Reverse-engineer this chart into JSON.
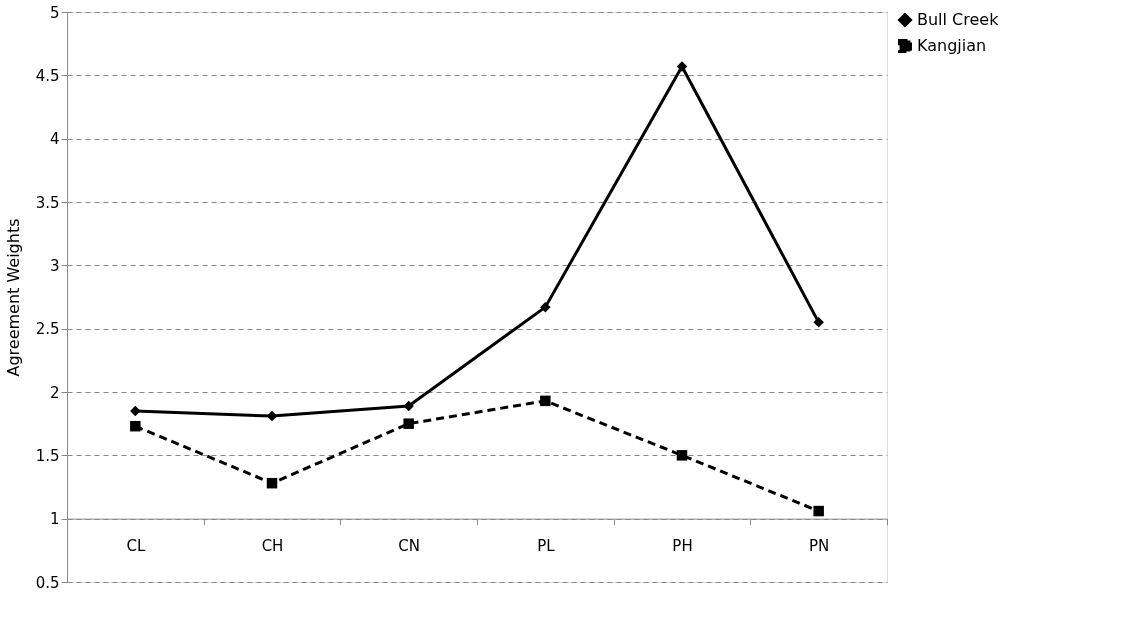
{
  "chart_data": {
    "type": "line",
    "ylabel": "Agreement Weights",
    "categories": [
      "CL",
      "CH",
      "CN",
      "PL",
      "PH",
      "PN"
    ],
    "series": [
      {
        "name": "Bull Creek",
        "color": "#000000",
        "line_style": "solid",
        "marker": "diamond",
        "values": [
          1.85,
          1.81,
          1.89,
          2.67,
          4.57,
          2.55
        ]
      },
      {
        "name": "Kangjian",
        "color": "#000000",
        "line_style": "dashed",
        "marker": "square",
        "values": [
          1.73,
          1.28,
          1.75,
          1.93,
          1.5,
          1.06
        ]
      }
    ],
    "ylim": [
      0.5,
      5
    ],
    "yticks": [
      0.5,
      1,
      1.5,
      2,
      2.5,
      3,
      3.5,
      4,
      4.5,
      5
    ],
    "grid": "y",
    "legend": "right"
  }
}
